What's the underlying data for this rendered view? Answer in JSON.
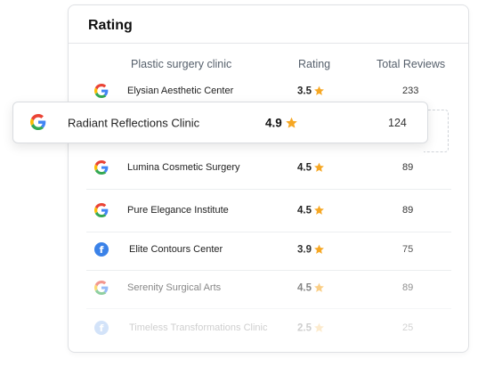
{
  "card": {
    "title": "Rating"
  },
  "columns": {
    "clinic": "Plastic surgery clinic",
    "rating": "Rating",
    "reviews": "Total Reviews"
  },
  "rows": [
    {
      "source": "google",
      "name": "Elysian Aesthetic Center",
      "rating": "3.5",
      "reviews": "233"
    },
    {
      "source": "google",
      "name": "Lumina Cosmetic Surgery",
      "rating": "4.5",
      "reviews": "89"
    },
    {
      "source": "google",
      "name": "Pure Elegance Institute",
      "rating": "4.5",
      "reviews": "89"
    },
    {
      "source": "facebook",
      "name": "Elite Contours Center",
      "rating": "3.9",
      "reviews": "75"
    },
    {
      "source": "google",
      "name": "Serenity Surgical Arts",
      "rating": "4.5",
      "reviews": "89"
    },
    {
      "source": "facebook",
      "name": "Timeless Transformations Clinic",
      "rating": "2.5",
      "reviews": "25"
    }
  ],
  "dragged_row": {
    "source": "google",
    "name": "Radiant Reflections Clinic",
    "rating": "4.9",
    "reviews": "124"
  },
  "icons": {
    "google": "google-logo-icon",
    "facebook": "facebook-logo-icon",
    "star": "star-icon"
  },
  "colors": {
    "star": "#f6a723",
    "facebook": "#3b82e8"
  }
}
